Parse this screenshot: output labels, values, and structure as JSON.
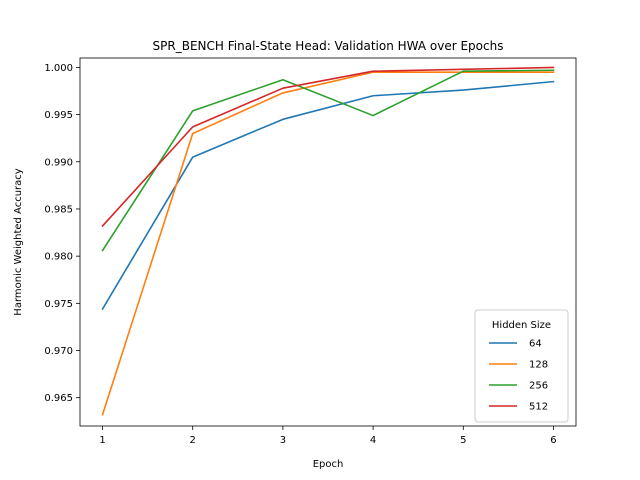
{
  "chart_data": {
    "type": "line",
    "title": "SPR_BENCH Final-State Head: Validation HWA over Epochs",
    "xlabel": "Epoch",
    "ylabel": "Harmonic Weighted Accuracy",
    "x": [
      1,
      2,
      3,
      4,
      5,
      6
    ],
    "xticks": [
      1,
      2,
      3,
      4,
      5,
      6
    ],
    "xlim": [
      0.75,
      6.25
    ],
    "ylim": [
      0.962,
      1.001
    ],
    "yticks": [
      "0.965",
      "0.970",
      "0.975",
      "0.980",
      "0.985",
      "0.990",
      "0.995",
      "1.000"
    ],
    "grid": false,
    "legend": {
      "title": "Hidden Size",
      "placement": "lower-right"
    },
    "series": [
      {
        "name": "64",
        "color": "#1f77b4",
        "values": [
          0.9744,
          0.9905,
          0.9945,
          0.997,
          0.9976,
          0.9985
        ]
      },
      {
        "name": "128",
        "color": "#ff7f0e",
        "values": [
          0.9632,
          0.993,
          0.9973,
          0.9995,
          0.9995,
          0.9995
        ]
      },
      {
        "name": "256",
        "color": "#2ca02c",
        "values": [
          0.9806,
          0.9954,
          0.9987,
          0.9949,
          0.9996,
          0.9997
        ]
      },
      {
        "name": "512",
        "color": "#d62728",
        "values": [
          0.9832,
          0.9937,
          0.9978,
          0.9996,
          0.9998,
          1.0
        ]
      }
    ]
  }
}
